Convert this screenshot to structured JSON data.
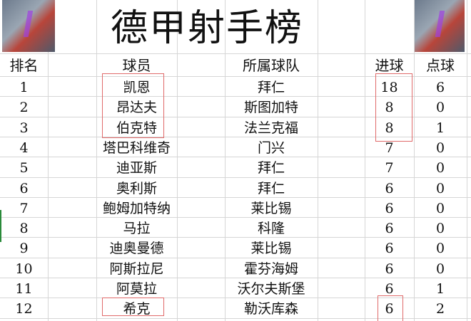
{
  "title": "德甲射手榜",
  "headers": [
    "排名",
    "球员",
    "所属球队",
    "进球",
    "点球"
  ],
  "rows": [
    {
      "rank": "1",
      "player": "凯恩",
      "team": "拜仁",
      "goals": "18",
      "penalties": "6"
    },
    {
      "rank": "2",
      "player": "昂达夫",
      "team": "斯图加特",
      "goals": "8",
      "penalties": "0"
    },
    {
      "rank": "3",
      "player": "伯克特",
      "team": "法兰克福",
      "goals": "8",
      "penalties": "1"
    },
    {
      "rank": "4",
      "player": "塔巴科维奇",
      "team": "门兴",
      "goals": "7",
      "penalties": "0"
    },
    {
      "rank": "5",
      "player": "迪亚斯",
      "team": "拜仁",
      "goals": "7",
      "penalties": "0"
    },
    {
      "rank": "6",
      "player": "奥利斯",
      "team": "拜仁",
      "goals": "6",
      "penalties": "0"
    },
    {
      "rank": "7",
      "player": "鲍姆加特纳",
      "team": "莱比锡",
      "goals": "6",
      "penalties": "0"
    },
    {
      "rank": "8",
      "player": "马拉",
      "team": "科隆",
      "goals": "6",
      "penalties": "0"
    },
    {
      "rank": "9",
      "player": "迪奥曼德",
      "team": "莱比锡",
      "goals": "6",
      "penalties": "0"
    },
    {
      "rank": "10",
      "player": "阿斯拉尼",
      "team": "霍芬海姆",
      "goals": "6",
      "penalties": "0"
    },
    {
      "rank": "11",
      "player": "阿莫拉",
      "team": "沃尔夫斯堡",
      "goals": "6",
      "penalties": "1"
    },
    {
      "rank": "12",
      "player": "希克",
      "team": "勒沃库森",
      "goals": "6",
      "penalties": "2"
    }
  ],
  "highlight_color": "#e06a6a"
}
